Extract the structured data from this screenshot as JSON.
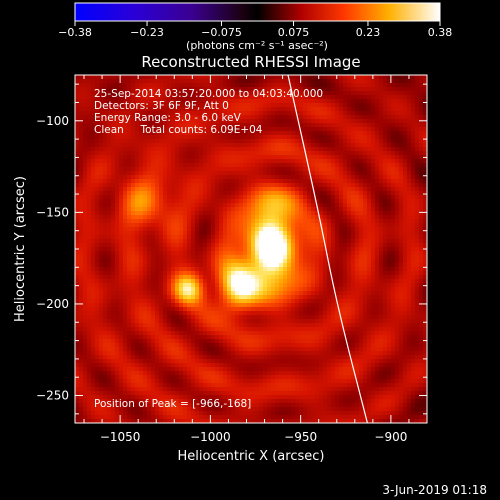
{
  "chart_data": {
    "type": "heatmap",
    "title": "Reconstructed RHESSI Image",
    "xlabel": "Heliocentric X (arcsec)",
    "ylabel": "Heliocentric Y (arcsec)",
    "xlim": [
      -1075,
      -880
    ],
    "ylim": [
      -265,
      -75
    ],
    "x_ticks": [
      -1050,
      -1000,
      -950,
      -900
    ],
    "y_ticks": [
      -100,
      -150,
      -200,
      -250
    ],
    "x_tick_labels": [
      "−1050",
      "−1000",
      "−950",
      "−900"
    ],
    "y_tick_labels": [
      "−100",
      "−150",
      "−200",
      "−250"
    ],
    "info_lines": [
      "25-Sep-2014 03:57:20.000 to 04:03:40.000",
      "Detectors: 3F 6F 9F, Att 0",
      "Energy Range: 3.0 - 6.0 keV",
      "Clean     Total counts: 6.09E+04"
    ],
    "peak_label": "Position of Peak = [-966,-168]",
    "peak": [
      -966,
      -168
    ],
    "sources": [
      {
        "x": -966,
        "y": -168,
        "sigma_x": 10,
        "sigma_y": 17,
        "amp": 0.38
      },
      {
        "x": -985,
        "y": -190,
        "sigma_x": 8,
        "sigma_y": 10,
        "amp": 0.25
      },
      {
        "x": -1012,
        "y": -192,
        "sigma_x": 6,
        "sigma_y": 6,
        "amp": 0.22
      },
      {
        "x": -1035,
        "y": -145,
        "sigma_x": 10,
        "sigma_y": 10,
        "amp": 0.12
      }
    ],
    "colorbar": {
      "min": -0.38,
      "max": 0.38,
      "ticks": [
        -0.38,
        -0.23,
        -0.075,
        0.075,
        0.23,
        0.38
      ],
      "tick_labels": [
        "−0.38",
        "−0.23",
        "−0.075",
        "0.075",
        "0.23",
        "0.38"
      ],
      "unit_label": "(photons cm⁻² s⁻¹ asec⁻²)"
    },
    "limb": [
      [
        -957,
        -75
      ],
      [
        -940,
        -150
      ],
      [
        -930,
        -200
      ],
      [
        -913,
        -265
      ]
    ],
    "grid": false
  },
  "footer": {
    "date": "3-Jun-2019 01:18"
  },
  "colors": {
    "limb": "#ffffff",
    "background": "#000000",
    "axes": "#ffffff"
  }
}
